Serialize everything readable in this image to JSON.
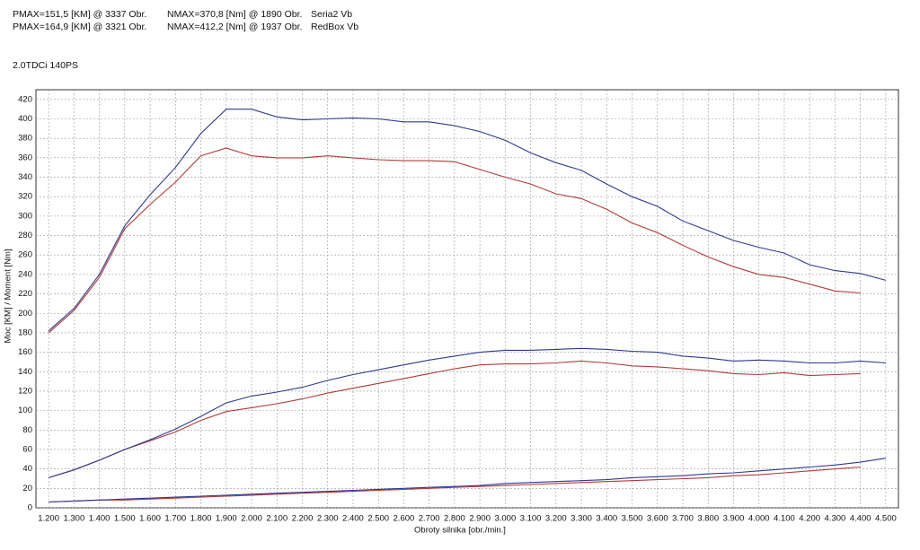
{
  "chart_data": {
    "type": "line",
    "subtitle": "2.0TDCi 140PS",
    "xlabel": "Obroty silnika [obr./min.]",
    "ylabel": "Moc [KM] / Moment [Nm]",
    "grid": true,
    "xlim": [
      1150,
      4550
    ],
    "ylim": [
      0,
      430
    ],
    "xticks": [
      {
        "value": 1200,
        "label": "1.200"
      },
      {
        "value": 1300,
        "label": "1.300"
      },
      {
        "value": 1400,
        "label": "1.400"
      },
      {
        "value": 1500,
        "label": "1.500"
      },
      {
        "value": 1600,
        "label": "1.600"
      },
      {
        "value": 1700,
        "label": "1.700"
      },
      {
        "value": 1800,
        "label": "1.800"
      },
      {
        "value": 1900,
        "label": "1.900"
      },
      {
        "value": 2000,
        "label": "2.000"
      },
      {
        "value": 2100,
        "label": "2.100"
      },
      {
        "value": 2200,
        "label": "2.200"
      },
      {
        "value": 2300,
        "label": "2.300"
      },
      {
        "value": 2400,
        "label": "2.400"
      },
      {
        "value": 2500,
        "label": "2.500"
      },
      {
        "value": 2600,
        "label": "2.600"
      },
      {
        "value": 2700,
        "label": "2.700"
      },
      {
        "value": 2800,
        "label": "2.800"
      },
      {
        "value": 2900,
        "label": "2.900"
      },
      {
        "value": 3000,
        "label": "3.000"
      },
      {
        "value": 3100,
        "label": "3.100"
      },
      {
        "value": 3200,
        "label": "3.200"
      },
      {
        "value": 3300,
        "label": "3.300"
      },
      {
        "value": 3400,
        "label": "3.400"
      },
      {
        "value": 3500,
        "label": "3.500"
      },
      {
        "value": 3600,
        "label": "3.600"
      },
      {
        "value": 3700,
        "label": "3.700"
      },
      {
        "value": 3800,
        "label": "3.800"
      },
      {
        "value": 3900,
        "label": "3.900"
      },
      {
        "value": 4000,
        "label": "4.000"
      },
      {
        "value": 4100,
        "label": "4.100"
      },
      {
        "value": 4200,
        "label": "4.200"
      },
      {
        "value": 4300,
        "label": "4.300"
      },
      {
        "value": 4400,
        "label": "4.400"
      },
      {
        "value": 4500,
        "label": "4.500"
      }
    ],
    "yticks": [
      0,
      20,
      40,
      60,
      80,
      100,
      120,
      140,
      160,
      180,
      200,
      220,
      240,
      260,
      280,
      300,
      320,
      340,
      360,
      380,
      400,
      420
    ],
    "x": [
      1200,
      1300,
      1400,
      1500,
      1600,
      1700,
      1800,
      1900,
      2000,
      2100,
      2200,
      2300,
      2400,
      2500,
      2600,
      2700,
      2800,
      2900,
      3000,
      3100,
      3200,
      3300,
      3400,
      3500,
      3600,
      3700,
      3800,
      3900,
      4000,
      4100,
      4200,
      4300,
      4400,
      4500
    ],
    "series": [
      {
        "name": "Seria2 Vb",
        "color": "#b03a3a",
        "pmax": "PMAX=151,5 [KM] @ 3337 Obr.",
        "nmax": "NMAX=370,8 [Nm] @ 1890 Obr.",
        "torque": [
          180,
          203,
          237,
          287,
          312,
          335,
          362,
          370,
          362,
          360,
          360,
          362,
          360,
          358,
          357,
          357,
          356,
          348,
          340,
          333,
          323,
          318,
          307,
          293,
          283,
          270,
          258,
          248,
          240,
          237,
          230,
          223,
          221,
          null
        ],
        "power": [
          31,
          39,
          49,
          60,
          69,
          78,
          90,
          99,
          103,
          107,
          112,
          118,
          123,
          128,
          133,
          138,
          143,
          147,
          148,
          148,
          149,
          151,
          149,
          146,
          145,
          143,
          141,
          138,
          137,
          139,
          136,
          137,
          138,
          null
        ],
        "loss": [
          6,
          7,
          8,
          8,
          9,
          10,
          11,
          12,
          13,
          14,
          15,
          16,
          17,
          18,
          19,
          20,
          21,
          22,
          23,
          24,
          25,
          26,
          27,
          28,
          29,
          30,
          31,
          33,
          34,
          36,
          38,
          40,
          42,
          null
        ]
      },
      {
        "name": "RedBox Vb",
        "color": "#2e3a8c",
        "pmax": "PMAX=164,9 [KM] @ 3321 Obr.",
        "nmax": "NMAX=412,2 [Nm] @ 1937 Obr.",
        "torque": [
          182,
          205,
          240,
          290,
          322,
          350,
          385,
          410,
          410,
          402,
          399,
          400,
          401,
          400,
          397,
          397,
          393,
          387,
          378,
          365,
          355,
          347,
          333,
          320,
          310,
          295,
          285,
          275,
          268,
          262,
          250,
          244,
          241,
          234
        ],
        "power": [
          31,
          39,
          49,
          60,
          70,
          81,
          94,
          108,
          115,
          119,
          124,
          131,
          137,
          142,
          147,
          152,
          156,
          160,
          162,
          162,
          163,
          164,
          163,
          161,
          160,
          156,
          154,
          151,
          152,
          151,
          149,
          149,
          151,
          149
        ],
        "loss": [
          6,
          7,
          8,
          9,
          10,
          11,
          12,
          13,
          14,
          15,
          16,
          17,
          18,
          19,
          20,
          21,
          22,
          23,
          25,
          26,
          27,
          28,
          29,
          31,
          32,
          33,
          35,
          36,
          38,
          40,
          42,
          44,
          47,
          51
        ]
      }
    ]
  }
}
